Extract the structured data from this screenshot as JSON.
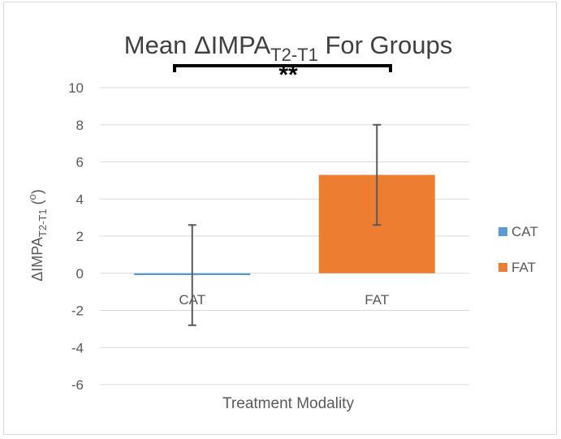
{
  "chart_data": {
    "type": "bar",
    "title": {
      "prefix": "Mean ΔIMPA",
      "subscript": "T2-T1",
      "suffix": " For Groups"
    },
    "xlabel": "Treatment Modality",
    "ylabel": {
      "prefix": "ΔIMPA",
      "subscript": "T2-T1",
      "suffix": " (",
      "superscript": "o",
      "close": ")"
    },
    "categories": [
      "CAT",
      "FAT"
    ],
    "values": [
      -0.1,
      5.3
    ],
    "error_bars": [
      {
        "low": -2.8,
        "high": 2.6
      },
      {
        "low": 2.6,
        "high": 8.0
      }
    ],
    "colors": [
      "#5b9bd5",
      "#ed7d31"
    ],
    "legend": [
      "CAT",
      "FAT"
    ],
    "legend_position": "right",
    "ylim": [
      -6,
      10
    ],
    "yticks": [
      10,
      8,
      6,
      4,
      2,
      0,
      -2,
      -4,
      -6
    ],
    "grid": true,
    "significance_label": "**"
  }
}
